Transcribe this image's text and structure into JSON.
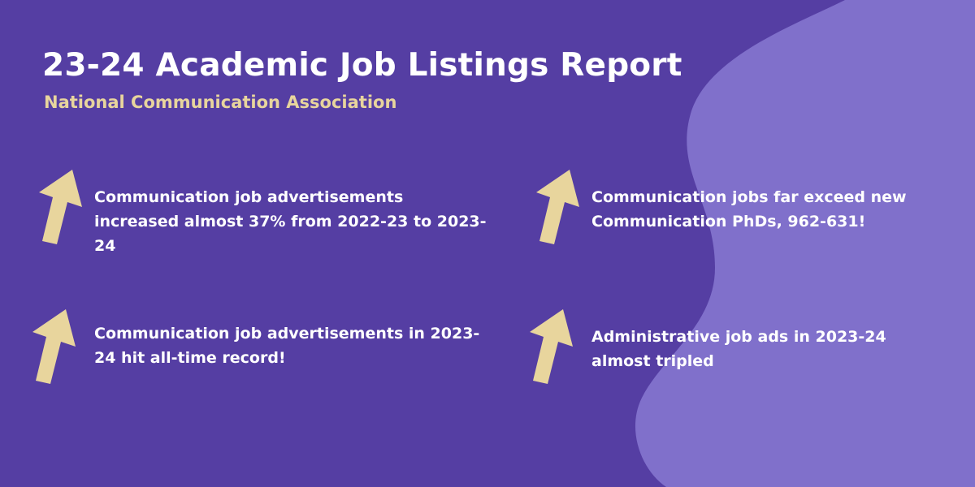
{
  "colors": {
    "background": "#553ea3",
    "blob": "#8070cb",
    "arrow": "#e8d59d",
    "title": "#ffffff",
    "subtitle": "#e8d59d"
  },
  "header": {
    "title": "23-24 Academic Job Listings Report",
    "subtitle": "National Communication Association"
  },
  "stats": [
    {
      "icon": "up-arrow-icon",
      "text": "Communication job advertisements increased almost 37% from 2022-23 to 2023-24"
    },
    {
      "icon": "up-arrow-icon",
      "text": "Communication jobs far exceed new Communication PhDs, 962-631!"
    },
    {
      "icon": "up-arrow-icon",
      "text": "Communication job advertisements in 2023-24 hit all-time record!"
    },
    {
      "icon": "up-arrow-icon",
      "text": "Administrative job ads in 2023-24 almost tripled"
    }
  ]
}
